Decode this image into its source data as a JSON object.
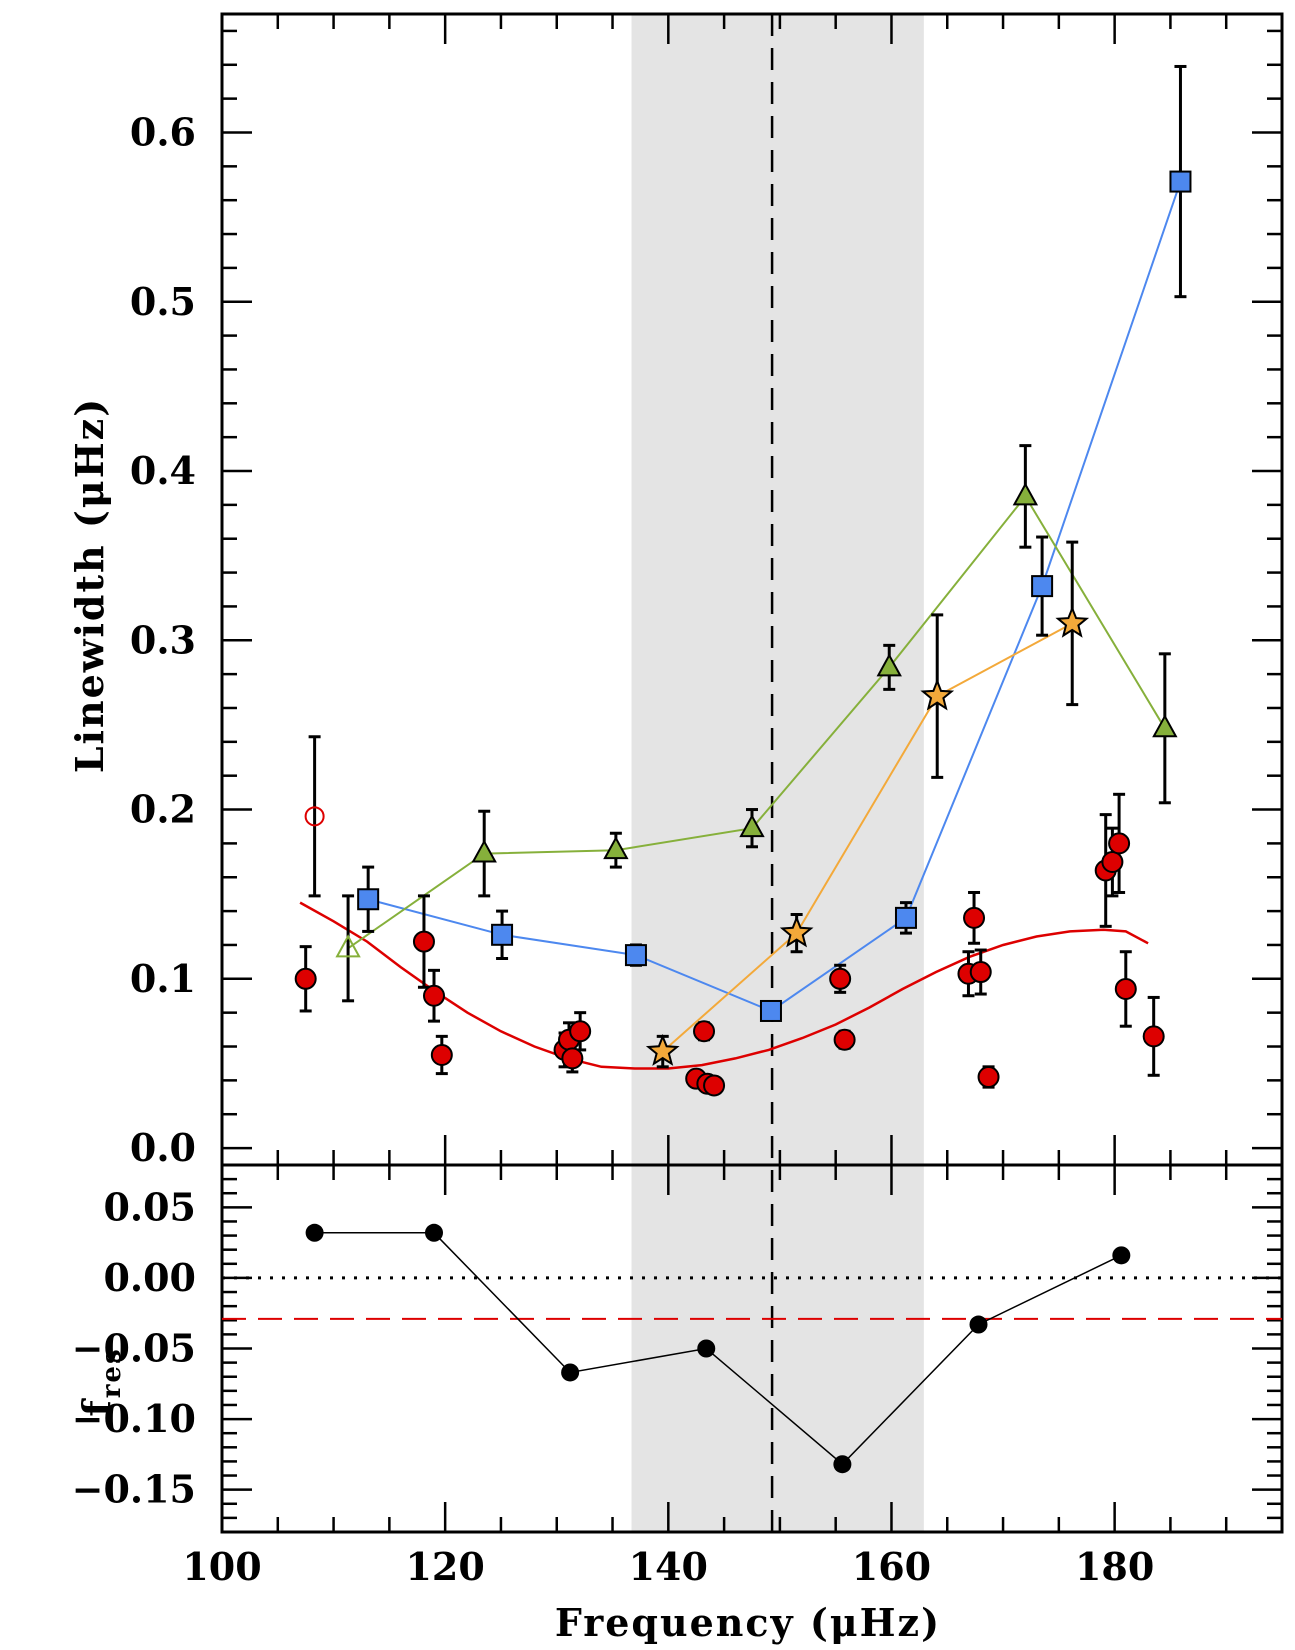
{
  "chart_data": [
    {
      "type": "scatter",
      "panel": "top",
      "ylabel": "Linewidth (μHz)",
      "xlim": [
        100,
        195
      ],
      "ylim": [
        -0.01,
        0.67
      ],
      "x_ticks": [
        100,
        120,
        140,
        160,
        180
      ],
      "y_ticks": [
        0.0,
        0.1,
        0.2,
        0.3,
        0.4,
        0.5,
        0.6
      ],
      "y_tick_labels": [
        "0.0",
        "0.1",
        "0.2",
        "0.3",
        "0.4",
        "0.5",
        "0.6"
      ],
      "shaded_region_x": [
        136.7,
        162.9
      ],
      "vertical_line_x": 149.3,
      "colors": {
        "red": "#dd0000",
        "blue": "#4d88ef",
        "green": "#86b03b",
        "orange": "#f3a93a",
        "shade": "#e4e4e4",
        "line_red": "#dd0000"
      },
      "series": [
        {
          "name": "red-circles",
          "marker": "circle",
          "points": [
            {
              "x": 107.5,
              "y": 0.1,
              "err": 0.019
            },
            {
              "x": 118.1,
              "y": 0.122,
              "err": 0.027
            },
            {
              "x": 119.0,
              "y": 0.09,
              "err": 0.015
            },
            {
              "x": 119.7,
              "y": 0.055,
              "err": 0.011
            },
            {
              "x": 130.7,
              "y": 0.058,
              "err": 0.01
            },
            {
              "x": 131.1,
              "y": 0.064,
              "err": 0.01
            },
            {
              "x": 131.4,
              "y": 0.053,
              "err": 0.008
            },
            {
              "x": 132.1,
              "y": 0.069,
              "err": 0.011
            },
            {
              "x": 142.5,
              "y": 0.041,
              "err": 0.004
            },
            {
              "x": 143.2,
              "y": 0.069,
              "err": 0.005
            },
            {
              "x": 143.5,
              "y": 0.038,
              "err": 0.004
            },
            {
              "x": 144.1,
              "y": 0.037,
              "err": 0.004
            },
            {
              "x": 155.4,
              "y": 0.1,
              "err": 0.008
            },
            {
              "x": 155.8,
              "y": 0.064,
              "err": 0.005
            },
            {
              "x": 166.9,
              "y": 0.103,
              "err": 0.013
            },
            {
              "x": 167.4,
              "y": 0.136,
              "err": 0.015
            },
            {
              "x": 168.0,
              "y": 0.104,
              "err": 0.013
            },
            {
              "x": 168.7,
              "y": 0.042,
              "err": 0.006
            },
            {
              "x": 179.2,
              "y": 0.164,
              "err": 0.033
            },
            {
              "x": 179.8,
              "y": 0.169,
              "err": 0.02
            },
            {
              "x": 180.4,
              "y": 0.18,
              "err": 0.029
            },
            {
              "x": 181.0,
              "y": 0.094,
              "err": 0.022
            },
            {
              "x": 183.5,
              "y": 0.066,
              "err": 0.023
            }
          ]
        },
        {
          "name": "red-open-circle",
          "marker": "open-circle",
          "points": [
            {
              "x": 108.3,
              "y": 0.196,
              "err": 0.047
            }
          ]
        },
        {
          "name": "blue-squares",
          "marker": "square",
          "connected": true,
          "points": [
            {
              "x": 113.1,
              "y": 0.147,
              "err": 0.019
            },
            {
              "x": 125.1,
              "y": 0.126,
              "err": 0.014
            },
            {
              "x": 137.1,
              "y": 0.114,
              "err": 0.006
            },
            {
              "x": 149.2,
              "y": 0.081,
              "err": 0.004
            },
            {
              "x": 161.3,
              "y": 0.136,
              "err": 0.009
            },
            {
              "x": 173.5,
              "y": 0.332,
              "err": 0.029
            },
            {
              "x": 185.9,
              "y": 0.571,
              "err": 0.068
            }
          ]
        },
        {
          "name": "green-triangles",
          "marker": "triangle",
          "connected": true,
          "points": [
            {
              "x": 111.3,
              "y": 0.118,
              "err": 0.031,
              "open": true
            },
            {
              "x": 123.5,
              "y": 0.174,
              "err": 0.025
            },
            {
              "x": 135.3,
              "y": 0.176,
              "err": 0.01
            },
            {
              "x": 147.5,
              "y": 0.189,
              "err": 0.011
            },
            {
              "x": 159.8,
              "y": 0.284,
              "err": 0.013
            },
            {
              "x": 172.0,
              "y": 0.385,
              "err": 0.03
            },
            {
              "x": 184.5,
              "y": 0.248,
              "err": 0.044
            }
          ]
        },
        {
          "name": "orange-stars",
          "marker": "star",
          "connected": true,
          "points": [
            {
              "x": 139.5,
              "y": 0.057,
              "err": 0.009
            },
            {
              "x": 151.5,
              "y": 0.127,
              "err": 0.011
            },
            {
              "x": 164.1,
              "y": 0.267,
              "err": 0.048
            },
            {
              "x": 176.2,
              "y": 0.31,
              "err": 0.048
            }
          ]
        }
      ],
      "fit_curve": {
        "name": "red-fit-curve",
        "x": [
          107,
          110,
          113,
          116,
          119,
          122,
          125,
          128,
          131,
          134,
          137,
          140,
          143,
          146,
          149,
          152,
          155,
          158,
          161,
          164,
          167,
          170,
          173,
          176,
          179,
          181,
          183
        ],
        "y": [
          0.145,
          0.134,
          0.122,
          0.107,
          0.093,
          0.08,
          0.069,
          0.06,
          0.053,
          0.048,
          0.047,
          0.047,
          0.049,
          0.053,
          0.058,
          0.065,
          0.073,
          0.083,
          0.094,
          0.104,
          0.113,
          0.12,
          0.125,
          0.128,
          0.129,
          0.128,
          0.121
        ]
      }
    },
    {
      "type": "line",
      "panel": "bottom",
      "xlabel": "Frequency (μHz)",
      "ylabel": "f",
      "ylabel_subscript": "res",
      "xlim": [
        100,
        195
      ],
      "ylim": [
        -0.18,
        0.08
      ],
      "x_ticks": [
        100,
        120,
        140,
        160,
        180
      ],
      "x_tick_labels": [
        "100",
        "120",
        "140",
        "160",
        "180"
      ],
      "y_ticks": [
        0.05,
        0.0,
        -0.05,
        -0.1,
        -0.15
      ],
      "y_tick_labels": [
        "0.05",
        "0.00",
        "−0.05",
        "−0.10",
        "−0.15"
      ],
      "zero_line_y": 0.0,
      "reference_line_y": -0.029,
      "series": [
        {
          "name": "black-dots",
          "x": [
            108.3,
            119.0,
            131.2,
            143.4,
            155.6,
            167.8,
            180.6
          ],
          "y": [
            0.032,
            0.032,
            -0.067,
            -0.05,
            -0.132,
            -0.033,
            0.016
          ]
        }
      ]
    }
  ]
}
